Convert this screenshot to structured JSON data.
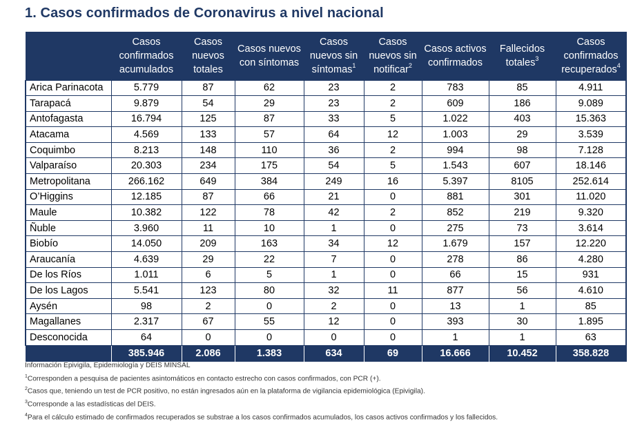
{
  "title": "1. Casos confirmados de Coronavirus a nivel nacional",
  "headers": [
    {
      "text": "",
      "sup": ""
    },
    {
      "text": "Casos confirmados acumulados",
      "sup": ""
    },
    {
      "text": "Casos nuevos totales",
      "sup": ""
    },
    {
      "text": "Casos nuevos con síntomas",
      "sup": ""
    },
    {
      "text": "Casos nuevos sin síntomas",
      "sup": "1"
    },
    {
      "text": "Casos nuevos sin notificar",
      "sup": "2"
    },
    {
      "text": "Casos activos confirmados",
      "sup": ""
    },
    {
      "text": "Fallecidos totales",
      "sup": "3"
    },
    {
      "text": "Casos confirmados recuperados",
      "sup": "4"
    }
  ],
  "rows": [
    [
      "Arica Parinacota",
      "5.779",
      "87",
      "62",
      "23",
      "2",
      "783",
      "85",
      "4.911"
    ],
    [
      "Tarapacá",
      "9.879",
      "54",
      "29",
      "23",
      "2",
      "609",
      "186",
      "9.089"
    ],
    [
      "Antofagasta",
      "16.794",
      "125",
      "87",
      "33",
      "5",
      "1.022",
      "403",
      "15.363"
    ],
    [
      "Atacama",
      "4.569",
      "133",
      "57",
      "64",
      "12",
      "1.003",
      "29",
      "3.539"
    ],
    [
      "Coquimbo",
      "8.213",
      "148",
      "110",
      "36",
      "2",
      "994",
      "98",
      "7.128"
    ],
    [
      "Valparaíso",
      "20.303",
      "234",
      "175",
      "54",
      "5",
      "1.543",
      "607",
      "18.146"
    ],
    [
      "Metropolitana",
      "266.162",
      "649",
      "384",
      "249",
      "16",
      "5.397",
      "8105",
      "252.614"
    ],
    [
      "O’Higgins",
      "12.185",
      "87",
      "66",
      "21",
      "0",
      "881",
      "301",
      "11.020"
    ],
    [
      "Maule",
      "10.382",
      "122",
      "78",
      "42",
      "2",
      "852",
      "219",
      "9.320"
    ],
    [
      "Ñuble",
      "3.960",
      "11",
      "10",
      "1",
      "0",
      "275",
      "73",
      "3.614"
    ],
    [
      "Biobío",
      "14.050",
      "209",
      "163",
      "34",
      "12",
      "1.679",
      "157",
      "12.220"
    ],
    [
      "Araucanía",
      "4.639",
      "29",
      "22",
      "7",
      "0",
      "278",
      "86",
      "4.280"
    ],
    [
      "De los Ríos",
      "1.011",
      "6",
      "5",
      "1",
      "0",
      "66",
      "15",
      "931"
    ],
    [
      "De los Lagos",
      "5.541",
      "123",
      "80",
      "32",
      "11",
      "877",
      "56",
      "4.610"
    ],
    [
      "Aysén",
      "98",
      "2",
      "0",
      "2",
      "0",
      "13",
      "1",
      "85"
    ],
    [
      "Magallanes",
      "2.317",
      "67",
      "55",
      "12",
      "0",
      "393",
      "30",
      "1.895"
    ],
    [
      "Desconocida",
      "64",
      "0",
      "0",
      "0",
      "0",
      "1",
      "1",
      "63"
    ]
  ],
  "totals": [
    "",
    "385.946",
    "2.086",
    "1.383",
    "634",
    "69",
    "16.666",
    "10.452",
    "358.828"
  ],
  "notes": {
    "source": "Información Epivigila, Epidemiología y DEIS MINSAL",
    "n1_sup": "1",
    "n1": "Corresponden a pesquisa de pacientes asintomáticos en contacto estrecho con casos confirmados, con PCR (+).",
    "n2_sup": "2",
    "n2": "Casos que, teniendo un test de PCR positivo, no están ingresados aún en la plataforma de vigilancia epidemiológica (Epivigila).",
    "n3_sup": "3",
    "n3": "Corresponde a las estadísticas del DEIS.",
    "n4_sup": "4",
    "n4": "Para el cálculo estimado de confirmados recuperados se substrae a los casos confirmados acumulados, los casos activos confirmados y los fallecidos."
  }
}
